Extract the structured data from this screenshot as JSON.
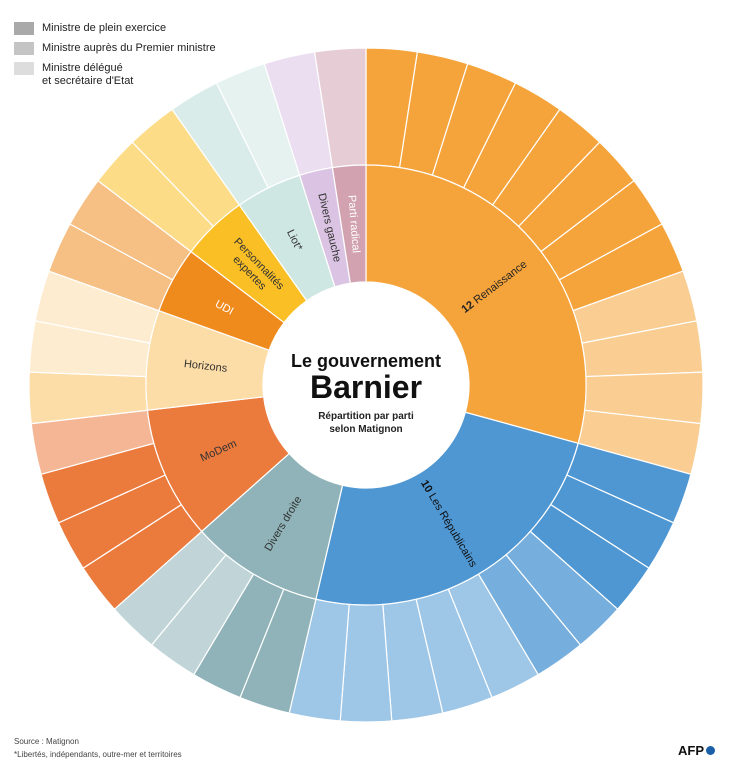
{
  "legend": [
    {
      "label": "Ministre de plein exercice",
      "color": "#a9a9a9"
    },
    {
      "label": "Ministre auprès du Premier ministre",
      "color": "#c4c4c4"
    },
    {
      "label": "Ministre délégué\net secrétaire d'Etat",
      "color": "#dddddd"
    }
  ],
  "center": {
    "line1": "Le gouvernement",
    "line2": "Barnier",
    "line3": "Répartition par parti",
    "line4": "selon Matignon"
  },
  "source": "Source : Matignon",
  "footnote": "*Libertés, indépendants, outre-mer et territoires",
  "brand": "AFP",
  "chart_data": {
    "type": "sunburst",
    "start_angle_deg": 0,
    "direction": "clockwise",
    "parties": [
      {
        "name": "Renaissance",
        "count": 12,
        "count_label": "12",
        "color": "#f5a43b",
        "label_color": "#222222",
        "ministers": [
          8,
          0,
          4
        ]
      },
      {
        "name": "Les Républicains",
        "count": 10,
        "count_label": "10",
        "color": "#4f97d3",
        "label_color": "#111111",
        "ministers": [
          3,
          2,
          5
        ]
      },
      {
        "name": "Divers droite",
        "count": 4,
        "count_label": "",
        "color": "#8fb3b8",
        "label_color": "#333333",
        "ministers": [
          2,
          0,
          2
        ]
      },
      {
        "name": "MoDem",
        "count": 4,
        "count_label": "",
        "color": "#eb7a3d",
        "label_color": "#333333",
        "ministers": [
          3,
          0,
          1
        ]
      },
      {
        "name": "Horizons",
        "count": 3,
        "count_label": "",
        "color": "#fcdca7",
        "label_color": "#333333",
        "ministers": [
          1,
          0,
          2
        ]
      },
      {
        "name": "UDI",
        "count": 2,
        "count_label": "",
        "color": "#ef8a1d",
        "label_color": "#ffffff",
        "ministers": [
          0,
          0,
          2
        ]
      },
      {
        "name": "Personnalités\nexpertes",
        "count": 2,
        "count_label": "",
        "color": "#f9bf25",
        "label_color": "#333333",
        "ministers": [
          0,
          0,
          2
        ]
      },
      {
        "name": "Liot*",
        "count": 2,
        "count_label": "",
        "color": "#cfe7e3",
        "label_color": "#333333",
        "ministers": [
          0,
          1,
          1
        ]
      },
      {
        "name": "Divers gauche",
        "count": 1,
        "count_label": "",
        "color": "#dbc3e3",
        "label_color": "#333333",
        "ministers": [
          0,
          0,
          1
        ]
      },
      {
        "name": "Parti radical",
        "count": 1,
        "count_label": "",
        "color": "#d2a2b0",
        "label_color": "#ffffff",
        "ministers": [
          0,
          0,
          1
        ]
      }
    ]
  }
}
